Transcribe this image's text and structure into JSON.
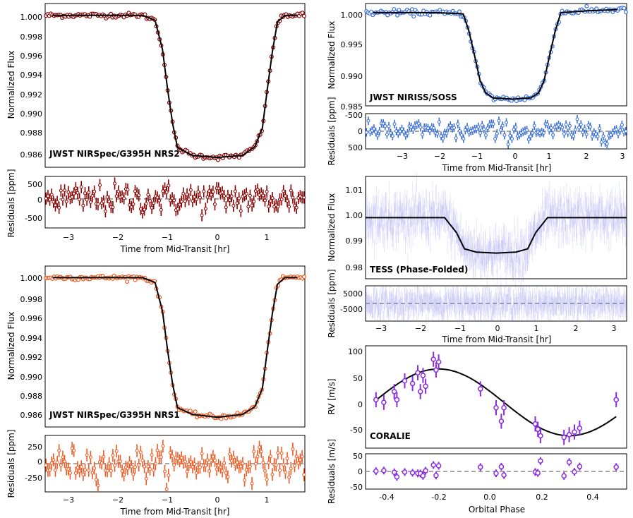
{
  "chart_data": [
    {
      "id": "nrs2",
      "type": "scatter",
      "label": "JWST NIRSpec/G395H NRS2",
      "color": "#8b0000",
      "x": [
        -3.3,
        -3.0,
        -2.5,
        -2.0,
        -1.5,
        -1.25,
        -1.1,
        -1.0,
        -0.9,
        -0.8,
        -0.5,
        0.0,
        0.5,
        0.75,
        0.9,
        1.0,
        1.1,
        1.2,
        1.35,
        1.6
      ],
      "y": [
        1.0,
        1.0,
        1.0,
        1.0,
        1.0,
        0.9995,
        0.9965,
        0.9925,
        0.989,
        0.9865,
        0.9857,
        0.9855,
        0.9857,
        0.9866,
        0.9885,
        0.9925,
        0.9963,
        0.9993,
        1.0,
        1.0
      ],
      "xlim": [
        -3.45,
        1.75
      ],
      "ylim": [
        0.9845,
        1.0012
      ],
      "ylabel": "Normalized Flux",
      "yticks": [
        "0.986",
        "0.988",
        "0.990",
        "0.992",
        "0.994",
        "0.996",
        "0.998",
        "1.000"
      ],
      "residuals": {
        "ylabel": "Residuals [ppm]",
        "ylim": [
          -800,
          620
        ],
        "yticks": [
          "-500",
          "0",
          "500"
        ],
        "xlabel": "Time from Mid-Transit [hr]",
        "xticks": [
          "−3",
          "−2",
          "−1",
          "0",
          "1"
        ],
        "scatter": 280
      }
    },
    {
      "id": "nrs1",
      "type": "scatter",
      "label": "JWST NIRSpec/G395H NRS1",
      "color": "#f15a22",
      "x": [
        -3.3,
        -3.0,
        -2.5,
        -2.0,
        -1.5,
        -1.25,
        -1.1,
        -1.0,
        -0.9,
        -0.8,
        -0.5,
        0.0,
        0.5,
        0.75,
        0.9,
        1.0,
        1.1,
        1.2,
        1.35,
        1.6
      ],
      "y": [
        1.0,
        1.0,
        1.0,
        1.0,
        1.0,
        0.9995,
        0.9965,
        0.9925,
        0.989,
        0.9865,
        0.9858,
        0.9855,
        0.9858,
        0.9866,
        0.9885,
        0.9925,
        0.9963,
        0.9993,
        1.0,
        1.0
      ],
      "xlim": [
        -3.45,
        1.75
      ],
      "ylim": [
        0.9845,
        1.0012
      ],
      "ylabel": "Normalized Flux",
      "yticks": [
        "0.986",
        "0.988",
        "0.990",
        "0.992",
        "0.994",
        "0.996",
        "0.998",
        "1.000"
      ],
      "residuals": {
        "ylabel": "Residuals [ppm]",
        "ylim": [
          -420,
          420
        ],
        "yticks": [
          "-250",
          "0",
          "250"
        ],
        "xlabel": "Time from Mid-Transit [hr]",
        "xticks": [
          "−3",
          "−2",
          "−1",
          "0",
          "1"
        ],
        "scatter": 160
      }
    },
    {
      "id": "soss",
      "type": "scatter",
      "label": "JWST NIRISS/SOSS",
      "color": "#3a6fd8",
      "x": [
        -3.7,
        -3.0,
        -2.0,
        -1.3,
        -1.15,
        -1.0,
        -0.85,
        -0.7,
        -0.5,
        0.0,
        0.5,
        0.7,
        0.85,
        1.0,
        1.15,
        1.3,
        2.0,
        2.8
      ],
      "y": [
        1.0,
        1.0,
        1.0,
        0.9998,
        0.997,
        0.993,
        0.9888,
        0.9868,
        0.986,
        0.9858,
        0.986,
        0.9868,
        0.9888,
        0.993,
        0.997,
        1.0,
        1.0003,
        1.0005
      ],
      "xlim": [
        -3.9,
        3.05
      ],
      "ylim": [
        0.9847,
        1.0015
      ],
      "ylabel": "Normalized Flux",
      "yticks": [
        "0.985",
        "0.990",
        "0.995",
        "1.000"
      ],
      "residuals": {
        "ylabel": "Residuals [ppm]",
        "ylim": [
          -500,
          500
        ],
        "yticks": [
          "-500",
          "0",
          "500"
        ],
        "xlabel": "Time from Mid-Transit [hr]",
        "xticks": [
          "−3",
          "−2",
          "−1",
          "0",
          "1",
          "2",
          "3"
        ],
        "scatter": 200
      }
    },
    {
      "id": "tess",
      "type": "scatter",
      "label": "TESS (Phase-Folded)",
      "color": "#7b7be8",
      "x": [
        -3.3,
        -1.3,
        -1.0,
        -0.8,
        -0.5,
        0.0,
        0.5,
        0.8,
        1.0,
        1.3,
        3.3
      ],
      "y": [
        1.0,
        1.0,
        0.994,
        0.9875,
        0.9862,
        0.9858,
        0.9862,
        0.9875,
        0.994,
        1.0,
        1.0
      ],
      "xlim": [
        -3.3,
        3.3
      ],
      "ylim": [
        0.9755,
        1.0165
      ],
      "ylabel": "Normalized Flux",
      "yticks": [
        "0.98",
        "0.99",
        "1.00",
        "1.01"
      ],
      "residuals": {
        "ylabel": "Residuals [ppm]",
        "ylim": [
          -8000,
          8000
        ],
        "yticks": [
          "-5000",
          "5000"
        ],
        "xlabel": "Time from Mid-Transit [hr]",
        "xticks": [
          "−3",
          "−2",
          "−1",
          "0",
          "1",
          "2",
          "3"
        ],
        "scatter": 4000
      }
    },
    {
      "id": "coralie",
      "type": "scatter",
      "label": "CORALIE",
      "color": "#8a2be2",
      "x": [
        -0.44,
        -0.41,
        -0.37,
        -0.36,
        -0.33,
        -0.3,
        -0.28,
        -0.27,
        -0.26,
        -0.25,
        -0.22,
        -0.21,
        -0.2,
        -0.04,
        0.02,
        0.04,
        0.05,
        0.17,
        0.18,
        0.19,
        0.28,
        0.3,
        0.32,
        0.34,
        0.48
      ],
      "y": [
        5,
        0,
        20,
        5,
        40,
        35,
        55,
        20,
        50,
        30,
        80,
        60,
        75,
        25,
        -10,
        -35,
        -10,
        -40,
        -50,
        -62,
        -65,
        -60,
        -55,
        -48,
        5
      ],
      "xlim": [
        -0.48,
        0.52
      ],
      "ylim": [
        -85,
        105
      ],
      "xlabel": "Orbital Phase",
      "xticks": [
        "-0.4",
        "-0.2",
        "0.0",
        "0.2",
        "0.4"
      ],
      "ylabel": "RV [m/s]",
      "yticks": [
        "-50",
        "0",
        "50",
        "100"
      ],
      "residuals": {
        "ylabel": "Residuals [m/s]",
        "ylim": [
          -55,
          55
        ],
        "yticks": [
          "-50",
          "0",
          "50"
        ],
        "scatter": 15
      }
    }
  ]
}
